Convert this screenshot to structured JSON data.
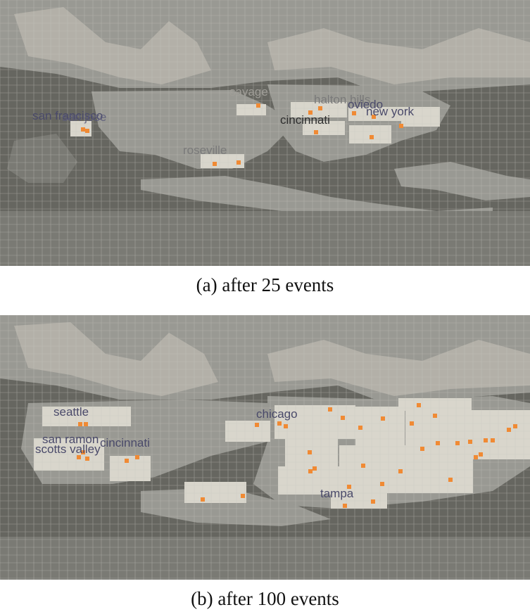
{
  "colors": {
    "background_dark": "#666660",
    "mid": "#999993",
    "light": "#b9b6ae",
    "highlight": "#d9d6cc",
    "grid_line": "#c8c6c0",
    "marker": "#f08a34",
    "label_dark": "#4a4a6a",
    "label_light": "#8a8a8a"
  },
  "panels": [
    {
      "caption": "(a)  after 25 events",
      "labels": [
        {
          "text": "savage",
          "tone": "light"
        },
        {
          "text": "halton hills",
          "tone": "mid"
        },
        {
          "text": "san francisco",
          "tone": "dark"
        },
        {
          "text": "san jose",
          "tone": "dark"
        },
        {
          "text": "cincinnati",
          "tone": "black"
        },
        {
          "text": "oviedo",
          "tone": "dark"
        },
        {
          "text": "new york",
          "tone": "dark"
        },
        {
          "text": "roseville",
          "tone": "mid"
        }
      ]
    },
    {
      "caption": "(b)  after 100 events",
      "labels": [
        {
          "text": "seattle",
          "tone": "dark"
        },
        {
          "text": "chicago",
          "tone": "dark"
        },
        {
          "text": "san ramon",
          "tone": "dark"
        },
        {
          "text": "scotts valley",
          "tone": "dark"
        },
        {
          "text": "cincinnati",
          "tone": "dark"
        },
        {
          "text": "tampa",
          "tone": "dark"
        }
      ]
    }
  ]
}
